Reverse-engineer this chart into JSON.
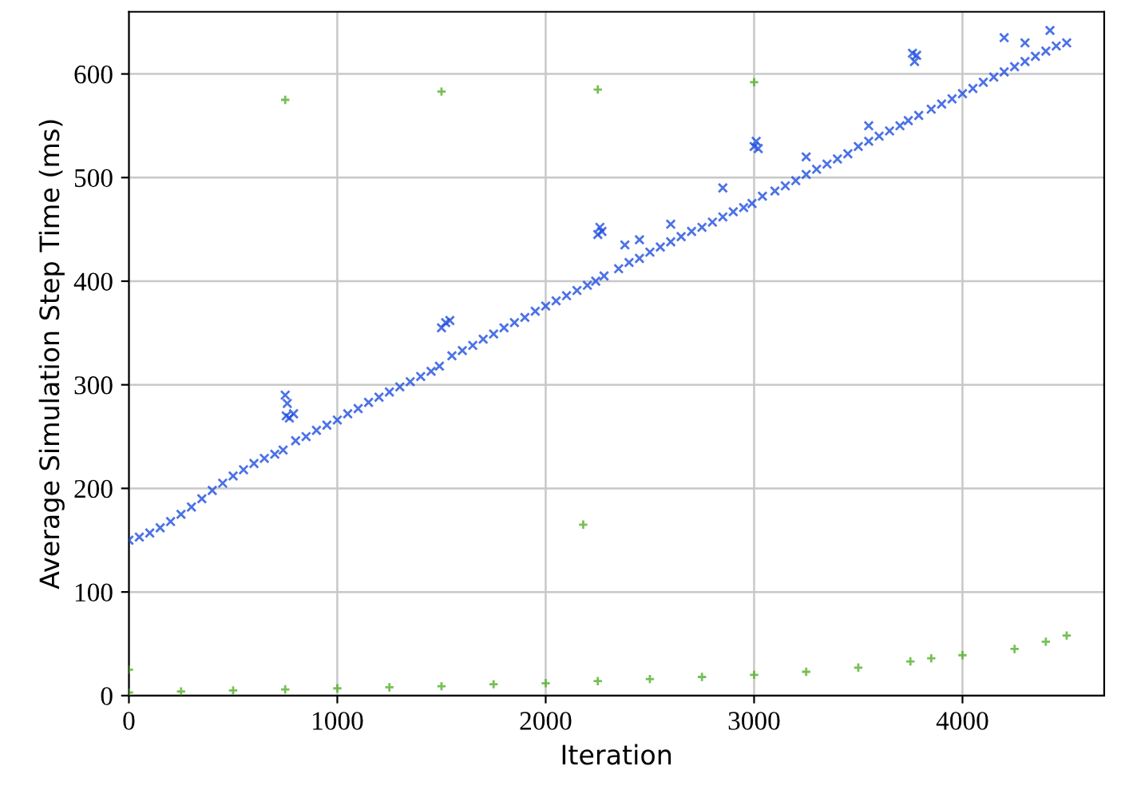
{
  "chart_data": {
    "type": "scatter",
    "xlabel": "Iteration",
    "ylabel": "Average Simulation Step Time (ms)",
    "xlim": [
      0,
      4680
    ],
    "xticks": [
      0,
      1000,
      2000,
      3000,
      4000
    ],
    "ylim": [
      0,
      660
    ],
    "yticks": [
      0,
      100,
      200,
      300,
      400,
      500,
      600
    ],
    "grid": true,
    "series": [
      {
        "color": "#1f4fe0",
        "marker": "cross",
        "x": [
          0,
          50,
          100,
          150,
          200,
          250,
          300,
          350,
          400,
          450,
          500,
          550,
          600,
          650,
          700,
          740,
          750,
          755,
          760,
          770,
          790,
          800,
          850,
          900,
          950,
          1000,
          1050,
          1100,
          1150,
          1200,
          1250,
          1300,
          1350,
          1400,
          1450,
          1490,
          1500,
          1520,
          1540,
          1550,
          1600,
          1650,
          1700,
          1750,
          1800,
          1850,
          1900,
          1950,
          2000,
          2050,
          2100,
          2150,
          2200,
          2240,
          2250,
          2260,
          2270,
          2280,
          2350,
          2380,
          2400,
          2450,
          2450,
          2500,
          2550,
          2600,
          2600,
          2650,
          2700,
          2750,
          2800,
          2850,
          2850,
          2900,
          2950,
          2990,
          3000,
          3010,
          3020,
          3040,
          3100,
          3150,
          3200,
          3250,
          3250,
          3300,
          3350,
          3400,
          3450,
          3500,
          3550,
          3550,
          3600,
          3650,
          3700,
          3740,
          3760,
          3770,
          3780,
          3790,
          3850,
          3900,
          3950,
          4000,
          4050,
          4100,
          4150,
          4200,
          4200,
          4250,
          4300,
          4300,
          4350,
          4400,
          4420,
          4450,
          4500
        ],
        "values": [
          150,
          153,
          157,
          162,
          168,
          175,
          182,
          190,
          198,
          205,
          212,
          218,
          224,
          229,
          233,
          237,
          290,
          270,
          282,
          268,
          272,
          246,
          250,
          256,
          261,
          266,
          272,
          277,
          283,
          288,
          293,
          298,
          303,
          308,
          313,
          318,
          355,
          360,
          362,
          328,
          333,
          338,
          344,
          349,
          355,
          360,
          365,
          371,
          376,
          381,
          386,
          391,
          396,
          400,
          445,
          452,
          448,
          405,
          412,
          435,
          418,
          422,
          440,
          428,
          433,
          438,
          455,
          443,
          448,
          452,
          457,
          462,
          490,
          467,
          471,
          475,
          530,
          535,
          528,
          482,
          487,
          492,
          497,
          503,
          520,
          508,
          513,
          518,
          523,
          530,
          535,
          550,
          540,
          545,
          550,
          555,
          620,
          612,
          618,
          560,
          566,
          571,
          576,
          581,
          586,
          592,
          597,
          602,
          635,
          607,
          612,
          630,
          617,
          622,
          642,
          627,
          630
        ]
      },
      {
        "color": "#55b02a",
        "marker": "plus",
        "x": [
          0,
          0,
          250,
          500,
          750,
          750,
          1000,
          1250,
          1500,
          1500,
          1750,
          2000,
          2180,
          2250,
          2250,
          2500,
          2750,
          3000,
          3000,
          3250,
          3500,
          3750,
          3850,
          4000,
          4250,
          4400,
          4500
        ],
        "values": [
          3,
          25,
          4,
          5,
          6,
          575,
          7,
          8,
          9,
          583,
          11,
          12,
          165,
          14,
          585,
          16,
          18,
          20,
          592,
          23,
          27,
          33,
          36,
          39,
          45,
          52,
          58
        ]
      }
    ]
  }
}
